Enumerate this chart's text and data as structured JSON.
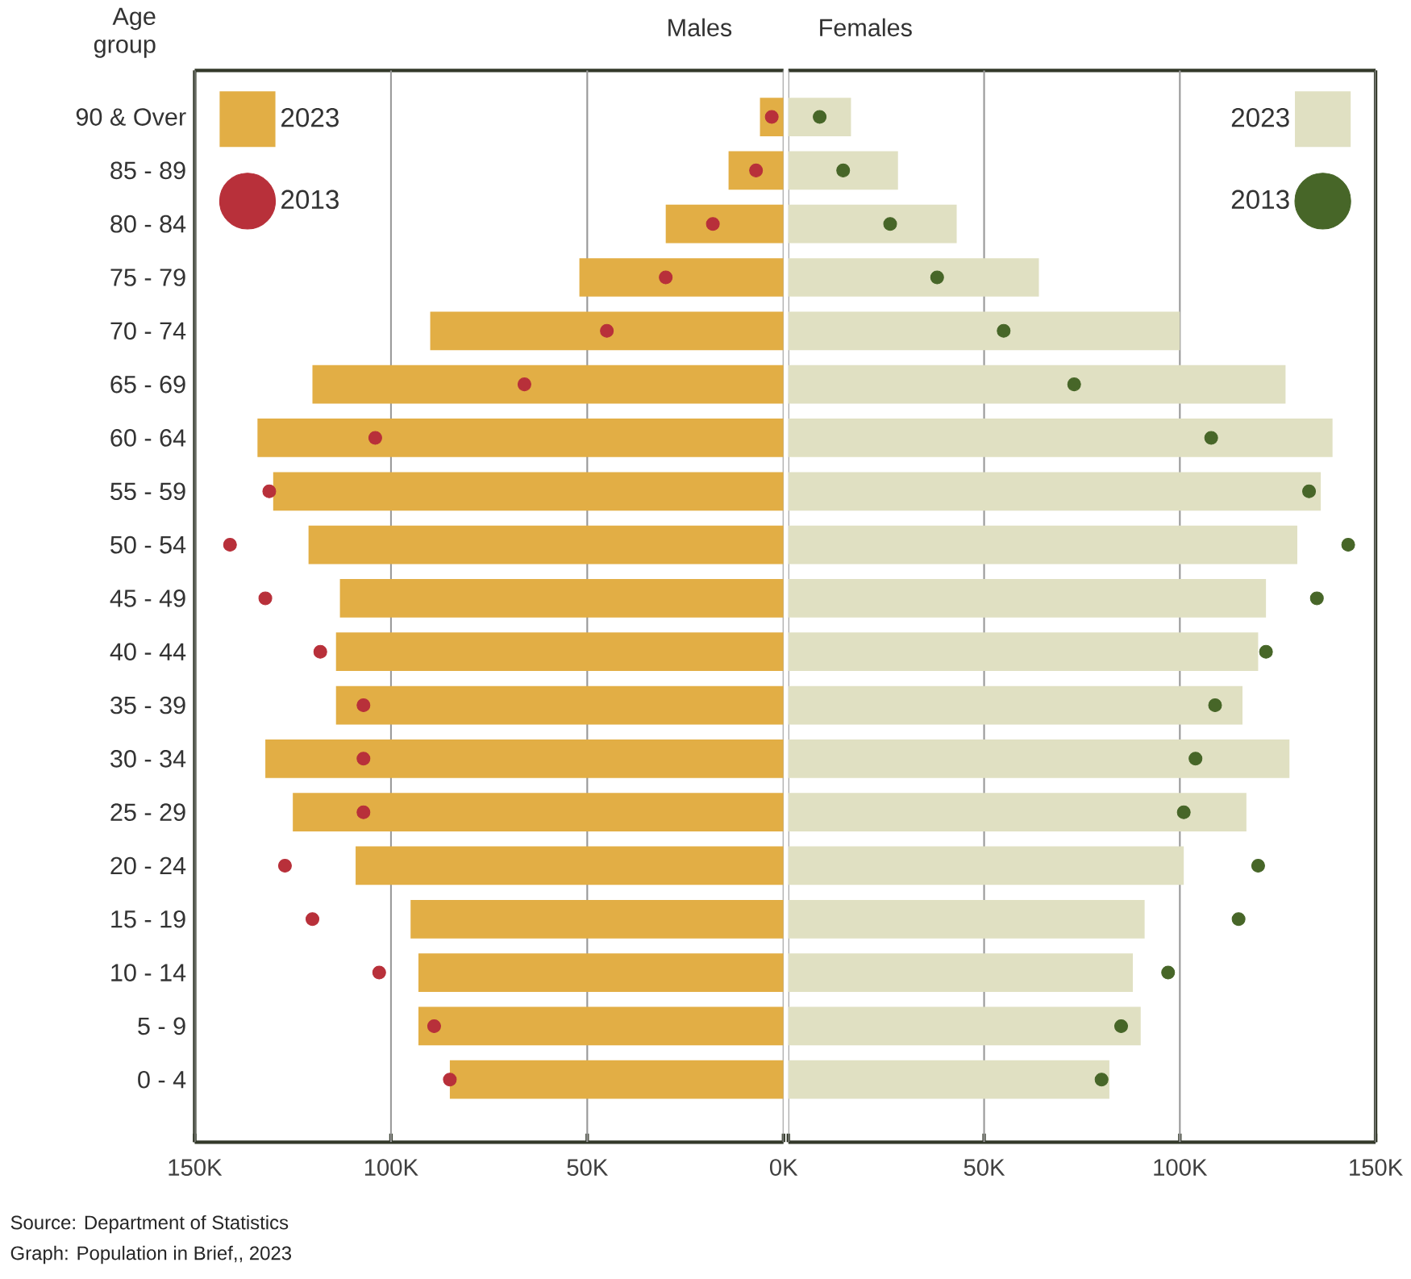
{
  "chart_data": [
    {
      "type": "bar",
      "orientation": "horizontal",
      "title": "Males",
      "ylabel": "Age group",
      "categories": [
        "90 & Over",
        "85 - 89",
        "80 - 84",
        "75 - 79",
        "70 - 74",
        "65 - 69",
        "60 - 64",
        "55 - 59",
        "50 - 54",
        "45 - 49",
        "40 - 44",
        "35 - 39",
        "30 - 34",
        "25 - 29",
        "20 - 24",
        "15 - 19",
        "10 - 14",
        "5 - 9",
        "0 - 4"
      ],
      "series": [
        {
          "name": "2023",
          "type": "bar",
          "color": "#e2ae45",
          "values": [
            6000,
            14000,
            30000,
            52000,
            90000,
            120000,
            134000,
            130000,
            121000,
            113000,
            114000,
            114000,
            132000,
            125000,
            109000,
            95000,
            93000,
            93000,
            85000
          ]
        },
        {
          "name": "2013",
          "type": "scatter",
          "marker": "circle",
          "color": "#b8303a",
          "values": [
            3000,
            7000,
            18000,
            30000,
            45000,
            66000,
            104000,
            131000,
            141000,
            132000,
            118000,
            107000,
            107000,
            107000,
            127000,
            120000,
            103000,
            89000,
            85000
          ]
        }
      ],
      "xlim": [
        150000,
        0
      ],
      "xticks": [
        {
          "value": 150000,
          "label": "150K"
        },
        {
          "value": 100000,
          "label": "100K"
        },
        {
          "value": 50000,
          "label": "50K"
        },
        {
          "value": 0,
          "label": "0K"
        }
      ],
      "grid": "x",
      "legend": "top left",
      "annotations": [
        "Source: Department of Statistics",
        "Graph: Population in Brief,, 2023"
      ]
    },
    {
      "type": "bar",
      "orientation": "horizontal",
      "title": "Females",
      "categories": [
        null,
        null,
        null,
        null,
        null,
        null,
        null,
        null,
        null,
        null,
        null,
        null,
        null,
        null,
        null,
        null,
        null,
        null,
        null
      ],
      "series": [
        {
          "name": "2023",
          "type": "bar",
          "color": "#e0e0c2",
          "values": [
            16000,
            28000,
            43000,
            64000,
            100000,
            127000,
            139000,
            136000,
            130000,
            122000,
            120000,
            116000,
            128000,
            117000,
            101000,
            91000,
            88000,
            90000,
            82000
          ]
        },
        {
          "name": "2013",
          "type": "scatter",
          "marker": "circle",
          "color": "#476628",
          "values": [
            8000,
            14000,
            26000,
            38000,
            55000,
            73000,
            108000,
            133000,
            143000,
            135000,
            122000,
            109000,
            104000,
            101000,
            120000,
            115000,
            97000,
            85000,
            80000
          ]
        }
      ],
      "xlim": [
        0,
        150000
      ],
      "xticks": [
        {
          "value": 0,
          "label": null
        },
        {
          "value": 50000,
          "label": "50K"
        },
        {
          "value": 100000,
          "label": "100K"
        },
        {
          "value": 150000,
          "label": "150K"
        }
      ],
      "grid": "x",
      "legend": "top right",
      "tick_labels": "x"
    }
  ]
}
